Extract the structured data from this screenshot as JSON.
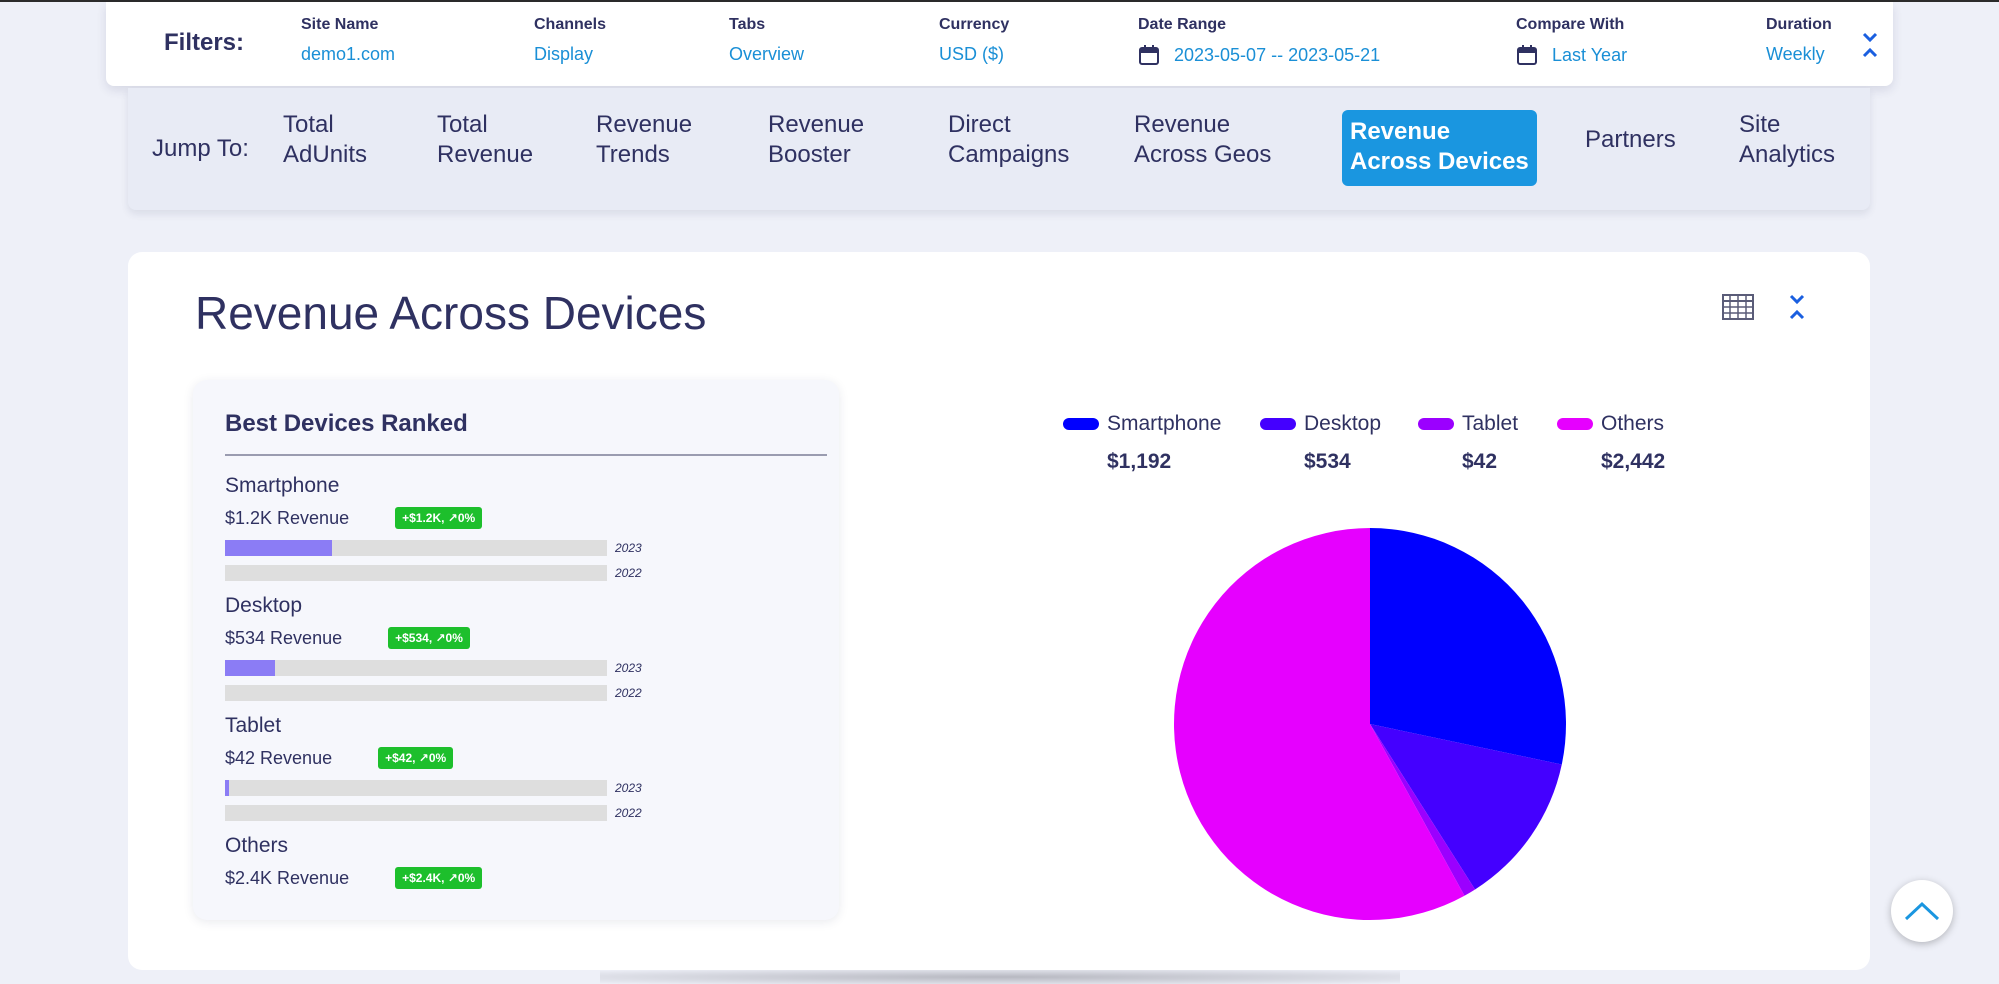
{
  "filters": {
    "label": "Filters:",
    "site_name": {
      "label": "Site Name",
      "value": "demo1.com"
    },
    "channels": {
      "label": "Channels",
      "value": "Display"
    },
    "tabs": {
      "label": "Tabs",
      "value": "Overview"
    },
    "currency": {
      "label": "Currency",
      "value": "USD ($)"
    },
    "date_range": {
      "label": "Date Range",
      "value": "2023-05-07 -- 2023-05-21"
    },
    "compare_with": {
      "label": "Compare With",
      "value": "Last Year"
    },
    "duration": {
      "label": "Duration",
      "value": "Weekly"
    }
  },
  "jump": {
    "label": "Jump To:",
    "items": [
      "Total\nAdUnits",
      "Total\nRevenue",
      "Revenue\nTrends",
      "Revenue\nBooster",
      "Direct\nCampaigns",
      "Revenue\nAcross Geos",
      "Revenue\nAcross Devices",
      "Partners",
      "Site\nAnalytics"
    ],
    "active": "Revenue\nAcross Devices"
  },
  "section": {
    "title": "Revenue Across Devices"
  },
  "ranked": {
    "title": "Best Devices Ranked",
    "devices": [
      {
        "name": "Smartphone",
        "revenue": "$1.2K Revenue",
        "badge": "+$1.2K, ↗0%",
        "year_current": "2023",
        "year_previous": "2022",
        "share_current": 0.28,
        "share_previous": 0
      },
      {
        "name": "Desktop",
        "revenue": "$534 Revenue",
        "badge": "+$534, ↗0%",
        "year_current": "2023",
        "year_previous": "2022",
        "share_current": 0.13,
        "share_previous": 0
      },
      {
        "name": "Tablet",
        "revenue": "$42 Revenue",
        "badge": "+$42, ↗0%",
        "year_current": "2023",
        "year_previous": "2022",
        "share_current": 0.01,
        "share_previous": 0
      },
      {
        "name": "Others",
        "revenue": "$2.4K Revenue",
        "badge": "+$2.4K, ↗0%"
      }
    ]
  },
  "chart_data": {
    "type": "pie",
    "categories": [
      "Smartphone",
      "Desktop",
      "Tablet",
      "Others"
    ],
    "values": [
      1192,
      534,
      42,
      2442
    ],
    "value_labels": [
      "$1,192",
      "$534",
      "$42",
      "$2,442"
    ],
    "colors": [
      "#0000ff",
      "#4400ff",
      "#9b00ff",
      "#e600ff"
    ],
    "legend": "top"
  },
  "colors": {
    "accent": "#1a96e0",
    "badge": "#1dbf2c",
    "bar_fill": "#8b7cf5"
  }
}
